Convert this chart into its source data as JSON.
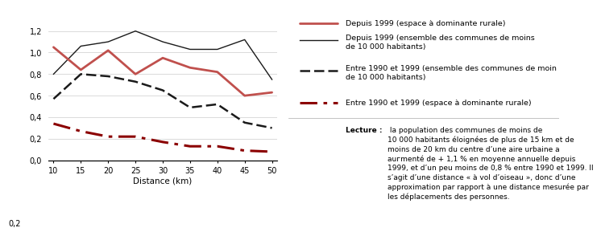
{
  "x": [
    10,
    15,
    20,
    25,
    30,
    35,
    40,
    45,
    50
  ],
  "depuis1999_rural": [
    1.05,
    0.84,
    1.02,
    0.8,
    0.95,
    0.86,
    0.82,
    0.6,
    0.63
  ],
  "depuis1999_ensemble": [
    0.8,
    1.06,
    1.1,
    1.2,
    1.1,
    1.03,
    1.03,
    1.12,
    0.75
  ],
  "entre1990_1999_ensemble": [
    0.57,
    0.8,
    0.78,
    0.73,
    0.65,
    0.49,
    0.52,
    0.35,
    0.3
  ],
  "entre1990_1999_rural": [
    0.34,
    0.27,
    0.22,
    0.22,
    0.17,
    0.13,
    0.13,
    0.09,
    0.08
  ],
  "color_red": "#c0504d",
  "color_black": "#1a1a1a",
  "color_dark_red": "#8b0000",
  "xlabel": "Distance (km)",
  "ylim_min": -0.25,
  "ylim_max": 1.3,
  "yticks": [
    0.0,
    0.2,
    0.4,
    0.6,
    0.8,
    1.0,
    1.2
  ],
  "ytick_labels": [
    "0,0",
    "0,2",
    "0,4",
    "0,6",
    "0,8",
    "1,0",
    "1,2"
  ],
  "legend_label1": "Depuis 1999 (espace à dominante rurale)",
  "legend_label2": "Depuis 1999 (ensemble des communes de moins\nde 10 000 habitants)",
  "legend_label3": "Entre 1990 et 1999 (ensemble des communes de moin\nde 10 000 habitants)",
  "legend_label4": "Entre 1990 et 1999 (espace à dominante rurale)",
  "lecture_bold": "Lecture :",
  "lecture_text": " la population des communes de moins de\n10 000 habitants éloignées de plus de 15 km et de\nmoins de 20 km du centre d’une aire urbaine a\nauгmenté de + 1,1 % en moyenne annuelle depuis\n1999, et d’un peu moins de 0,8 % entre 1990 et 1999. Il\ns’agit d’une distance « à vol d’oiseau », donc d’une\napproximation par rapport à une distance mesurée par\nles déplacements des personnes."
}
